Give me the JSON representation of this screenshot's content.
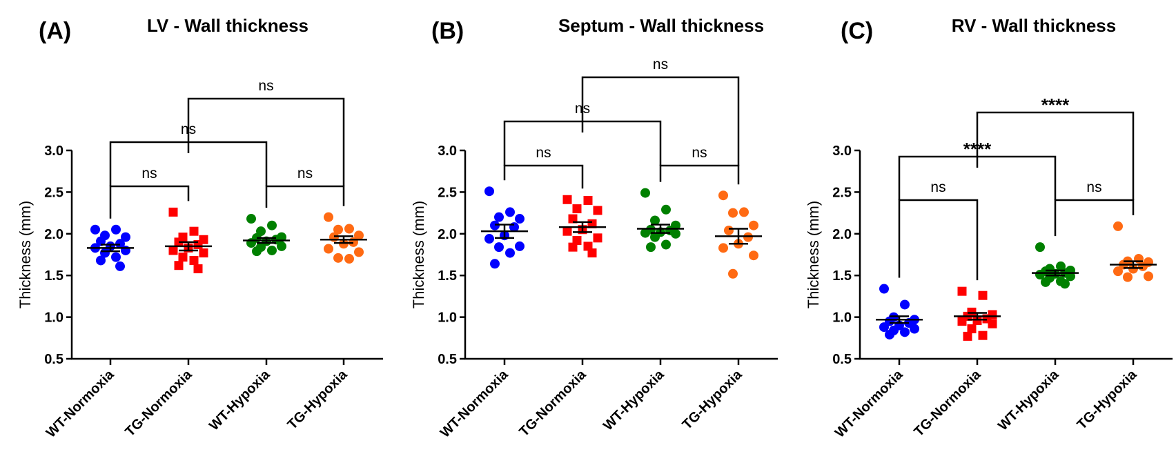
{
  "chart_data": [
    {
      "type": "scatter",
      "panel_label": "(A)",
      "title": "LV - Wall thickness",
      "xlabel": "",
      "ylabel": "Thickness (mm)",
      "ylim": [
        0.5,
        3.0
      ],
      "yticks": [
        "0.5",
        "1.0",
        "1.5",
        "2.0",
        "2.5",
        "3.0"
      ],
      "categories": [
        "WT-Normoxia",
        "TG-Normoxia",
        "WT-Hypoxia",
        "TG-Hypoxia"
      ],
      "series": [
        {
          "name": "WT-Normoxia",
          "marker": "circle",
          "color": "#0000ff",
          "mean": 1.83,
          "sem": 0.04,
          "values": [
            2.05,
            2.05,
            1.98,
            1.96,
            1.91,
            1.88,
            1.85,
            1.83,
            1.8,
            1.77,
            1.72,
            1.68,
            1.61
          ]
        },
        {
          "name": "TG-Normoxia",
          "marker": "square",
          "color": "#ff0000",
          "mean": 1.85,
          "sem": 0.05,
          "values": [
            2.26,
            2.03,
            1.96,
            1.93,
            1.9,
            1.87,
            1.83,
            1.8,
            1.77,
            1.72,
            1.68,
            1.62,
            1.58
          ]
        },
        {
          "name": "WT-Hypoxia",
          "marker": "circle",
          "color": "#008000",
          "mean": 1.92,
          "sem": 0.03,
          "values": [
            2.18,
            2.1,
            2.03,
            1.96,
            1.95,
            1.93,
            1.91,
            1.89,
            1.85,
            1.84,
            1.8,
            1.79
          ]
        },
        {
          "name": "TG-Hypoxia",
          "marker": "circle",
          "color": "#ff6a13",
          "mean": 1.93,
          "sem": 0.04,
          "values": [
            2.2,
            2.06,
            2.05,
            1.98,
            1.96,
            1.9,
            1.88,
            1.82,
            1.78,
            1.71,
            1.7
          ]
        }
      ],
      "comparisons": [
        {
          "groups": [
            "WT-Normoxia",
            "TG-Normoxia"
          ],
          "label": "ns"
        },
        {
          "groups": [
            "WT-Hypoxia",
            "TG-Hypoxia"
          ],
          "label": "ns"
        },
        {
          "groups": [
            "WT-Normoxia",
            "WT-Hypoxia"
          ],
          "label": "ns"
        },
        {
          "groups": [
            "TG-Normoxia",
            "TG-Hypoxia"
          ],
          "label": "ns"
        }
      ]
    },
    {
      "type": "scatter",
      "panel_label": "(B)",
      "title": "Septum - Wall thickness",
      "xlabel": "",
      "ylabel": "Thickness (mm)",
      "ylim": [
        0.5,
        3.0
      ],
      "yticks": [
        "0.5",
        "1.0",
        "1.5",
        "2.0",
        "2.5",
        "3.0"
      ],
      "categories": [
        "WT-Normoxia",
        "TG-Normoxia",
        "WT-Hypoxia",
        "TG-Hypoxia"
      ],
      "series": [
        {
          "name": "WT-Normoxia",
          "marker": "circle",
          "color": "#0000ff",
          "mean": 2.03,
          "sem": 0.08,
          "values": [
            2.51,
            2.26,
            2.2,
            2.18,
            2.1,
            2.08,
            1.98,
            1.94,
            1.85,
            1.84,
            1.77,
            1.64
          ]
        },
        {
          "name": "TG-Normoxia",
          "marker": "square",
          "color": "#ff0000",
          "mean": 2.08,
          "sem": 0.06,
          "values": [
            2.41,
            2.4,
            2.3,
            2.28,
            2.18,
            2.12,
            2.05,
            2.03,
            1.95,
            1.92,
            1.85,
            1.84,
            1.77
          ]
        },
        {
          "name": "WT-Hypoxia",
          "marker": "circle",
          "color": "#008000",
          "mean": 2.06,
          "sem": 0.05,
          "values": [
            2.49,
            2.29,
            2.16,
            2.1,
            2.05,
            2.04,
            2.02,
            2.01,
            2.0,
            1.96,
            1.87,
            1.84
          ]
        },
        {
          "name": "TG-Hypoxia",
          "marker": "circle",
          "color": "#ff6a13",
          "mean": 1.97,
          "sem": 0.09,
          "values": [
            2.46,
            2.26,
            2.25,
            2.1,
            2.04,
            1.96,
            1.88,
            1.83,
            1.74,
            1.52
          ]
        }
      ],
      "comparisons": [
        {
          "groups": [
            "WT-Normoxia",
            "TG-Normoxia"
          ],
          "label": "ns"
        },
        {
          "groups": [
            "WT-Hypoxia",
            "TG-Hypoxia"
          ],
          "label": "ns"
        },
        {
          "groups": [
            "WT-Normoxia",
            "WT-Hypoxia"
          ],
          "label": "ns"
        },
        {
          "groups": [
            "TG-Normoxia",
            "TG-Hypoxia"
          ],
          "label": "ns"
        }
      ]
    },
    {
      "type": "scatter",
      "panel_label": "(C)",
      "title": "RV - Wall thickness",
      "xlabel": "",
      "ylabel": "Thickness (mm)",
      "ylim": [
        0.5,
        3.0
      ],
      "yticks": [
        "0.5",
        "1.0",
        "1.5",
        "2.0",
        "2.5",
        "3.0"
      ],
      "categories": [
        "WT-Normoxia",
        "TG-Normoxia",
        "WT-Hypoxia",
        "TG-Hypoxia"
      ],
      "series": [
        {
          "name": "WT-Normoxia",
          "marker": "circle",
          "color": "#0000ff",
          "mean": 0.97,
          "sem": 0.04,
          "values": [
            1.34,
            1.15,
            1.0,
            0.97,
            0.95,
            0.93,
            0.9,
            0.88,
            0.86,
            0.84,
            0.82,
            0.79
          ]
        },
        {
          "name": "TG-Normoxia",
          "marker": "square",
          "color": "#ff0000",
          "mean": 1.01,
          "sem": 0.04,
          "values": [
            1.31,
            1.26,
            1.06,
            1.03,
            1.01,
            0.98,
            0.96,
            0.95,
            0.92,
            0.86,
            0.78,
            0.77
          ]
        },
        {
          "name": "WT-Hypoxia",
          "marker": "circle",
          "color": "#008000",
          "mean": 1.53,
          "sem": 0.03,
          "values": [
            1.84,
            1.61,
            1.58,
            1.56,
            1.55,
            1.53,
            1.52,
            1.51,
            1.49,
            1.47,
            1.43,
            1.42,
            1.4
          ]
        },
        {
          "name": "TG-Hypoxia",
          "marker": "circle",
          "color": "#ff6a13",
          "mean": 1.63,
          "sem": 0.04,
          "values": [
            2.09,
            1.7,
            1.67,
            1.66,
            1.63,
            1.61,
            1.58,
            1.55,
            1.49,
            1.48
          ]
        }
      ],
      "comparisons": [
        {
          "groups": [
            "WT-Normoxia",
            "TG-Normoxia"
          ],
          "label": "ns"
        },
        {
          "groups": [
            "WT-Hypoxia",
            "TG-Hypoxia"
          ],
          "label": "ns"
        },
        {
          "groups": [
            "WT-Normoxia",
            "WT-Hypoxia"
          ],
          "label": "****"
        },
        {
          "groups": [
            "TG-Normoxia",
            "TG-Hypoxia"
          ],
          "label": "****"
        }
      ]
    }
  ]
}
